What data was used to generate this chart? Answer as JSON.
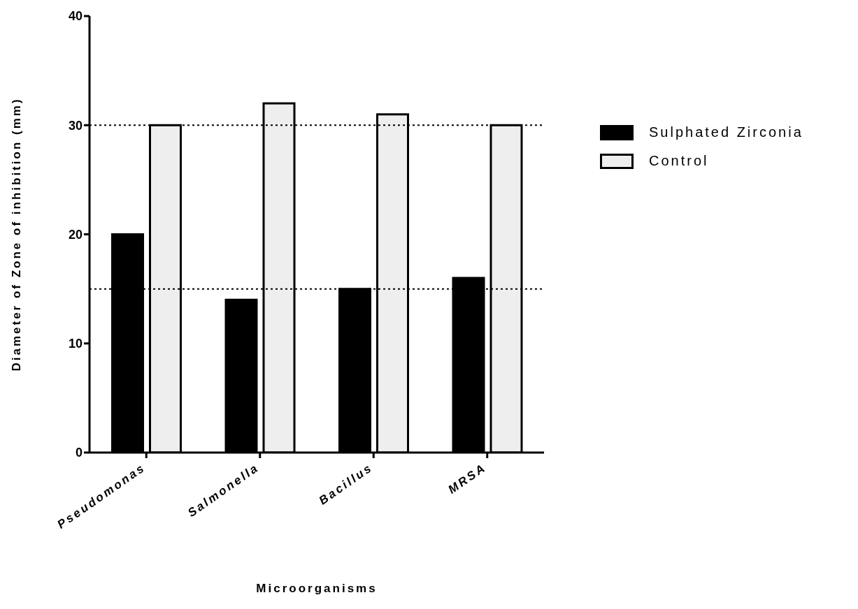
{
  "chart_data": {
    "type": "bar",
    "xlabel": "Microorganisms",
    "ylabel": "Diameter of Zone of inhibition (mm)",
    "categories": [
      "Pseudomonas",
      "Salmonella",
      "Bacillus",
      "MRSA"
    ],
    "series": [
      {
        "name": "Sulphated Zirconia",
        "color": "#000000",
        "values": [
          20,
          14,
          15,
          16
        ]
      },
      {
        "name": "Control",
        "color": "#eeeeee",
        "values": [
          30,
          32,
          31,
          30
        ]
      }
    ],
    "ylim": [
      0,
      40
    ],
    "yticks": [
      0,
      10,
      20,
      30,
      40
    ],
    "grid": false,
    "legend": "right",
    "ref_lines": [
      {
        "axis": "y",
        "value": 30,
        "line_style": "dotted",
        "color": "#000000"
      },
      {
        "axis": "y",
        "value": 15,
        "line_style": "dotted",
        "color": "#000000"
      }
    ]
  }
}
